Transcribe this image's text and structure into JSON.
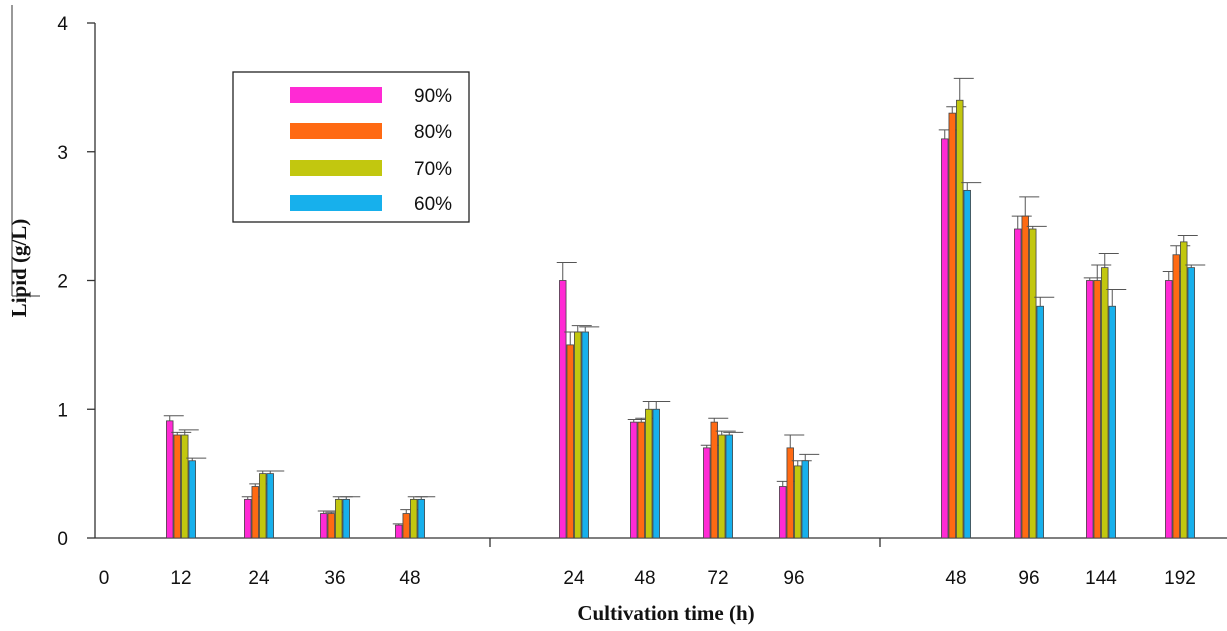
{
  "chart_data": {
    "type": "bar",
    "title": "",
    "xlabel": "Cultivation time (h)",
    "ylabel": "Lipid (g/L)",
    "ylim": [
      0,
      4
    ],
    "yticks": [
      "0",
      "1",
      "2",
      "3",
      "4"
    ],
    "grid": false,
    "legend_position": "top-left",
    "origin_label": "0",
    "groups": [
      {
        "categories": [
          "12",
          "24",
          "36",
          "48"
        ],
        "series": [
          {
            "name": "90%",
            "values": [
              0.91,
              0.3,
              0.19,
              0.1
            ],
            "errors": [
              0.04,
              0.02,
              0.02,
              0.01
            ]
          },
          {
            "name": "80%",
            "values": [
              0.8,
              0.4,
              0.19,
              0.19
            ],
            "errors": [
              0.02,
              0.02,
              0.01,
              0.03
            ]
          },
          {
            "name": "70%",
            "values": [
              0.8,
              0.5,
              0.3,
              0.3
            ],
            "errors": [
              0.04,
              0.02,
              0.02,
              0.02
            ]
          },
          {
            "name": "60%",
            "values": [
              0.6,
              0.5,
              0.3,
              0.3
            ],
            "errors": [
              0.02,
              0.02,
              0.02,
              0.02
            ]
          }
        ]
      },
      {
        "categories": [
          "24",
          "48",
          "72",
          "96"
        ],
        "series": [
          {
            "name": "90%",
            "values": [
              2.0,
              0.9,
              0.7,
              0.4
            ],
            "errors": [
              0.14,
              0.02,
              0.02,
              0.04
            ]
          },
          {
            "name": "80%",
            "values": [
              1.5,
              0.9,
              0.9,
              0.7
            ],
            "errors": [
              0.1,
              0.03,
              0.03,
              0.1
            ]
          },
          {
            "name": "70%",
            "values": [
              1.6,
              1.0,
              0.8,
              0.56
            ],
            "errors": [
              0.05,
              0.06,
              0.03,
              0.04
            ]
          },
          {
            "name": "60%",
            "values": [
              1.6,
              1.0,
              0.8,
              0.6
            ],
            "errors": [
              0.04,
              0.06,
              0.02,
              0.05
            ]
          }
        ]
      },
      {
        "categories": [
          "48",
          "96",
          "144",
          "192"
        ],
        "series": [
          {
            "name": "90%",
            "values": [
              3.1,
              2.4,
              2.0,
              2.0
            ],
            "errors": [
              0.07,
              0.1,
              0.02,
              0.07
            ]
          },
          {
            "name": "80%",
            "values": [
              3.3,
              2.5,
              2.0,
              2.2
            ],
            "errors": [
              0.05,
              0.15,
              0.12,
              0.07
            ]
          },
          {
            "name": "70%",
            "values": [
              3.4,
              2.4,
              2.1,
              2.3
            ],
            "errors": [
              0.17,
              0.02,
              0.11,
              0.05
            ]
          },
          {
            "name": "60%",
            "values": [
              2.7,
              1.8,
              1.8,
              2.1
            ],
            "errors": [
              0.06,
              0.07,
              0.13,
              0.02
            ]
          }
        ]
      }
    ],
    "colors": {
      "90%": "#ff2ad4",
      "80%": "#ff6a13",
      "70%": "#c2c70f",
      "60%": "#17b0ec"
    }
  }
}
